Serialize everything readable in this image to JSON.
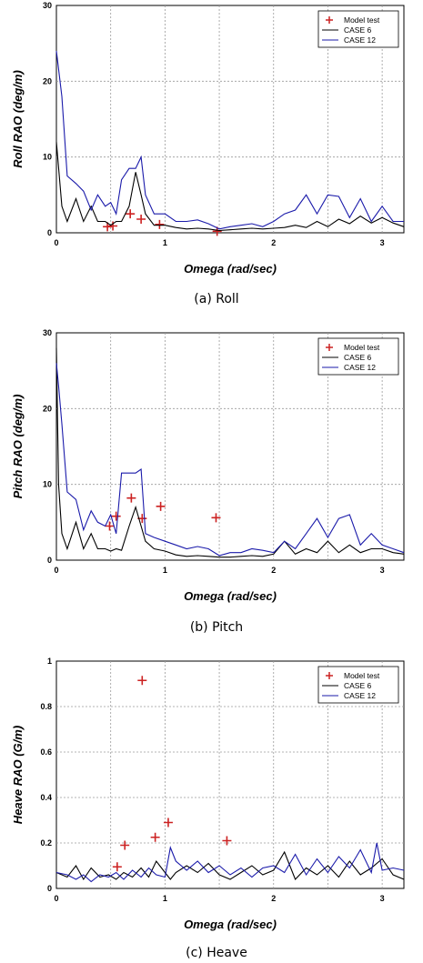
{
  "chart_data": [
    {
      "type": "line",
      "caption": "(a)  Roll",
      "xlabel": "Omega (rad/sec)",
      "ylabel": "Roll RAO (deg/m)",
      "xlim": [
        0,
        3.2
      ],
      "ylim": [
        0,
        30
      ],
      "xticks": [
        0,
        1,
        2,
        3
      ],
      "yticks": [
        0,
        10,
        20,
        30
      ],
      "ytick_labels": [
        "0",
        "10",
        "20",
        "30"
      ],
      "grid": true,
      "legend": {
        "placement": "top-right",
        "entries": [
          "Model test",
          "CASE 6",
          "CASE 12"
        ]
      },
      "series": [
        {
          "name": "Model test",
          "style": "markers",
          "color": "#cc2222",
          "x": [
            0.47,
            0.52,
            0.68,
            0.78,
            0.95,
            1.48
          ],
          "y": [
            0.8,
            0.9,
            2.5,
            1.8,
            1.1,
            0.2
          ]
        },
        {
          "name": "CASE 6",
          "style": "line",
          "color": "#000000",
          "x": [
            0,
            0.05,
            0.1,
            0.18,
            0.25,
            0.32,
            0.38,
            0.45,
            0.5,
            0.55,
            0.6,
            0.67,
            0.73,
            0.78,
            0.82,
            0.9,
            1.0,
            1.1,
            1.2,
            1.3,
            1.4,
            1.5,
            1.6,
            1.7,
            1.8,
            1.9,
            2.0,
            2.1,
            2.2,
            2.3,
            2.4,
            2.5,
            2.6,
            2.7,
            2.8,
            2.9,
            3.0,
            3.1,
            3.2
          ],
          "y": [
            12,
            3.5,
            1.5,
            4.5,
            1.5,
            3.5,
            1.5,
            1.5,
            1.0,
            1.5,
            1.5,
            3.5,
            8.0,
            5.0,
            2.5,
            1.0,
            1.0,
            0.7,
            0.5,
            0.6,
            0.5,
            0.3,
            0.4,
            0.5,
            0.6,
            0.5,
            0.6,
            0.7,
            1.0,
            0.7,
            1.5,
            0.8,
            1.8,
            1.2,
            2.2,
            1.3,
            2.0,
            1.3,
            0.8
          ]
        },
        {
          "name": "CASE 12",
          "style": "line",
          "color": "#1a1aaa",
          "x": [
            0,
            0.05,
            0.1,
            0.18,
            0.25,
            0.32,
            0.38,
            0.45,
            0.5,
            0.55,
            0.6,
            0.67,
            0.73,
            0.78,
            0.82,
            0.9,
            1.0,
            1.1,
            1.2,
            1.3,
            1.4,
            1.5,
            1.6,
            1.7,
            1.8,
            1.9,
            2.0,
            2.1,
            2.2,
            2.3,
            2.4,
            2.5,
            2.6,
            2.7,
            2.8,
            2.9,
            3.0,
            3.1,
            3.2
          ],
          "y": [
            24,
            18,
            7.5,
            6.5,
            5.5,
            3.0,
            5.0,
            3.5,
            4.0,
            2.5,
            7.0,
            8.5,
            8.5,
            10.0,
            5.0,
            2.5,
            2.5,
            1.5,
            1.5,
            1.7,
            1.2,
            0.5,
            0.8,
            1.0,
            1.2,
            0.8,
            1.5,
            2.5,
            3.0,
            5.0,
            2.5,
            5.0,
            4.8,
            2.0,
            4.5,
            1.5,
            3.5,
            1.5,
            1.5
          ]
        }
      ]
    },
    {
      "type": "line",
      "caption": "(b)  Pitch",
      "xlabel": "Omega (rad/sec)",
      "ylabel": "Pitch RAO (deg/m)",
      "xlim": [
        0,
        3.2
      ],
      "ylim": [
        0,
        30
      ],
      "xticks": [
        0,
        1,
        2,
        3
      ],
      "yticks": [
        0,
        10,
        20,
        30
      ],
      "ytick_labels": [
        "0",
        "10",
        "20",
        "30"
      ],
      "grid": true,
      "legend": {
        "placement": "top-right",
        "entries": [
          "Model test",
          "CASE 6",
          "CASE 12"
        ]
      },
      "series": [
        {
          "name": "Model test",
          "style": "markers",
          "color": "#cc2222",
          "x": [
            0.49,
            0.55,
            0.69,
            0.79,
            0.96,
            1.47
          ],
          "y": [
            4.5,
            5.8,
            8.2,
            5.5,
            7.1,
            5.6
          ]
        },
        {
          "name": "CASE 6",
          "style": "line",
          "color": "#000000",
          "x": [
            0,
            0.02,
            0.05,
            0.1,
            0.18,
            0.25,
            0.32,
            0.38,
            0.45,
            0.5,
            0.55,
            0.6,
            0.67,
            0.73,
            0.78,
            0.82,
            0.9,
            1.0,
            1.1,
            1.2,
            1.3,
            1.4,
            1.5,
            1.6,
            1.7,
            1.8,
            1.9,
            2.0,
            2.1,
            2.2,
            2.3,
            2.4,
            2.5,
            2.6,
            2.7,
            2.8,
            2.9,
            3.0,
            3.1,
            3.2
          ],
          "y": [
            28,
            10,
            3.5,
            1.5,
            5.0,
            1.5,
            3.5,
            1.5,
            1.5,
            1.2,
            1.5,
            1.3,
            4.5,
            7.0,
            4.5,
            2.5,
            1.5,
            1.2,
            0.7,
            0.5,
            0.6,
            0.5,
            0.4,
            0.4,
            0.5,
            0.6,
            0.5,
            0.8,
            2.5,
            0.8,
            1.5,
            1.0,
            2.5,
            1.0,
            2.0,
            1.0,
            1.5,
            1.5,
            1.0,
            0.8
          ]
        },
        {
          "name": "CASE 12",
          "style": "line",
          "color": "#1a1aaa",
          "x": [
            0,
            0.02,
            0.05,
            0.1,
            0.18,
            0.25,
            0.32,
            0.38,
            0.45,
            0.5,
            0.55,
            0.6,
            0.67,
            0.73,
            0.78,
            0.82,
            0.9,
            1.0,
            1.1,
            1.2,
            1.3,
            1.4,
            1.5,
            1.6,
            1.7,
            1.8,
            1.9,
            2.0,
            2.1,
            2.2,
            2.3,
            2.4,
            2.5,
            2.6,
            2.7,
            2.8,
            2.9,
            3.0,
            3.1,
            3.2
          ],
          "y": [
            26,
            23,
            18,
            9.0,
            8.0,
            4.0,
            6.5,
            5.0,
            4.5,
            6.0,
            3.5,
            11.5,
            11.5,
            11.5,
            12.0,
            3.5,
            3.0,
            2.5,
            2.0,
            1.5,
            1.8,
            1.5,
            0.6,
            1.0,
            1.0,
            1.5,
            1.3,
            1.0,
            2.5,
            1.5,
            3.5,
            5.5,
            3.0,
            5.5,
            6.0,
            2.0,
            3.5,
            2.0,
            1.5,
            1.0
          ]
        }
      ]
    },
    {
      "type": "line",
      "caption": "(c)  Heave",
      "xlabel": "Omega (rad/sec)",
      "ylabel": "Heave RAO (G/m)",
      "xlim": [
        0,
        3.2
      ],
      "ylim": [
        0,
        1
      ],
      "xticks": [
        0,
        1,
        2,
        3
      ],
      "yticks": [
        0,
        0.2,
        0.4,
        0.6,
        0.8,
        1
      ],
      "ytick_labels": [
        "0",
        "0.2",
        "0.4",
        "0.6",
        "0.8",
        "1"
      ],
      "grid": true,
      "legend": {
        "placement": "top-right",
        "entries": [
          "Model test",
          "CASE 6",
          "CASE 12"
        ]
      },
      "series": [
        {
          "name": "Model test",
          "style": "markers",
          "color": "#cc2222",
          "x": [
            0.56,
            0.63,
            0.79,
            0.91,
            1.03,
            1.57
          ],
          "y": [
            0.095,
            0.19,
            0.915,
            0.225,
            0.29,
            0.21
          ]
        },
        {
          "name": "CASE 6",
          "style": "line",
          "color": "#000000",
          "x": [
            0,
            0.1,
            0.18,
            0.25,
            0.32,
            0.4,
            0.48,
            0.55,
            0.62,
            0.7,
            0.78,
            0.85,
            0.92,
            1.0,
            1.05,
            1.1,
            1.2,
            1.3,
            1.4,
            1.5,
            1.6,
            1.7,
            1.8,
            1.9,
            2.0,
            2.1,
            2.2,
            2.3,
            2.4,
            2.5,
            2.6,
            2.7,
            2.8,
            2.9,
            3.0,
            3.1,
            3.2
          ],
          "y": [
            0.07,
            0.05,
            0.1,
            0.04,
            0.09,
            0.05,
            0.06,
            0.04,
            0.07,
            0.05,
            0.09,
            0.05,
            0.12,
            0.07,
            0.04,
            0.07,
            0.1,
            0.07,
            0.11,
            0.06,
            0.04,
            0.07,
            0.1,
            0.06,
            0.08,
            0.16,
            0.04,
            0.09,
            0.06,
            0.1,
            0.05,
            0.12,
            0.06,
            0.09,
            0.13,
            0.06,
            0.04
          ]
        },
        {
          "name": "CASE 12",
          "style": "line",
          "color": "#1a1aaa",
          "x": [
            0,
            0.1,
            0.18,
            0.25,
            0.32,
            0.4,
            0.48,
            0.55,
            0.62,
            0.7,
            0.78,
            0.85,
            0.92,
            1.0,
            1.05,
            1.1,
            1.2,
            1.3,
            1.4,
            1.5,
            1.6,
            1.7,
            1.8,
            1.9,
            2.0,
            2.1,
            2.2,
            2.3,
            2.4,
            2.5,
            2.6,
            2.7,
            2.8,
            2.9,
            2.95,
            3.0,
            3.1,
            3.2
          ],
          "y": [
            0.07,
            0.06,
            0.04,
            0.06,
            0.03,
            0.06,
            0.05,
            0.07,
            0.04,
            0.08,
            0.05,
            0.09,
            0.06,
            0.05,
            0.18,
            0.12,
            0.08,
            0.12,
            0.07,
            0.1,
            0.06,
            0.09,
            0.05,
            0.09,
            0.1,
            0.07,
            0.15,
            0.06,
            0.13,
            0.07,
            0.14,
            0.09,
            0.17,
            0.07,
            0.2,
            0.08,
            0.09,
            0.08
          ]
        }
      ]
    }
  ]
}
